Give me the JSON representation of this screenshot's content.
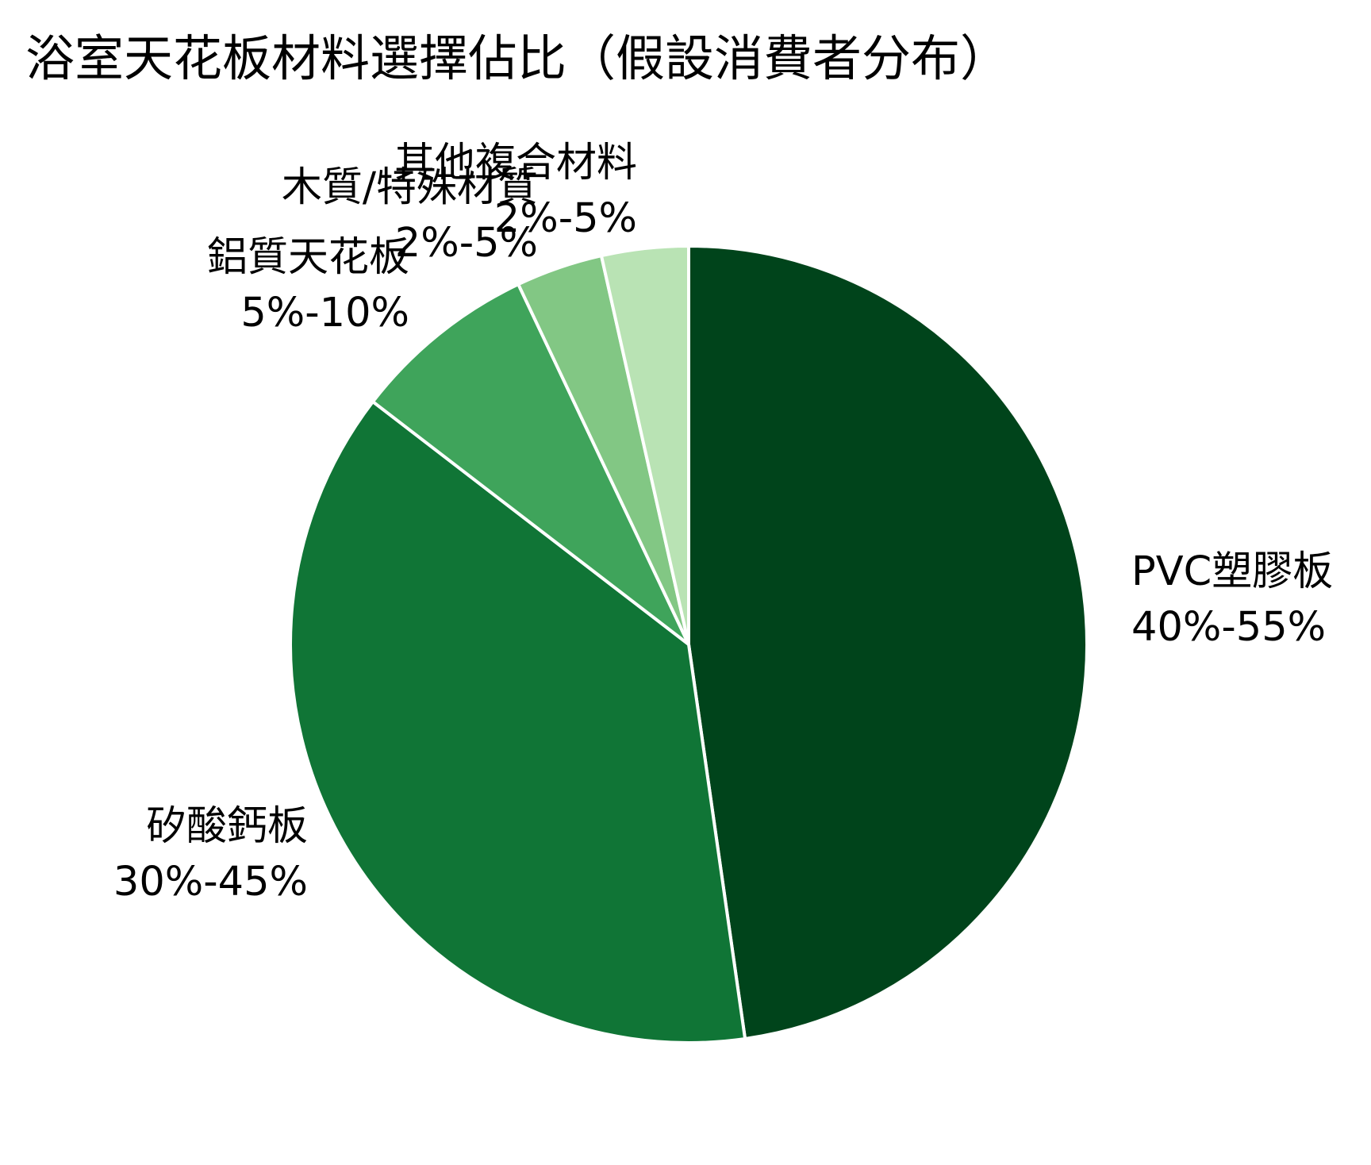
{
  "chart_data": {
    "type": "pie",
    "title": "浴室天花板材料選擇佔比（假設消費者分布）",
    "categories": [
      "PVC塑膠板",
      "矽酸鈣板",
      "鋁質天花板",
      "木質/特殊材質",
      "其他複合材料"
    ],
    "ranges": [
      "40%-55%",
      "30%-45%",
      "5%-10%",
      "2%-5%",
      "2%-5%"
    ],
    "values": [
      47.5,
      37.5,
      7.5,
      3.5,
      3.5
    ],
    "colors": [
      "#00441b",
      "#107536",
      "#3fa45b",
      "#82c784",
      "#b9e3b4"
    ]
  }
}
